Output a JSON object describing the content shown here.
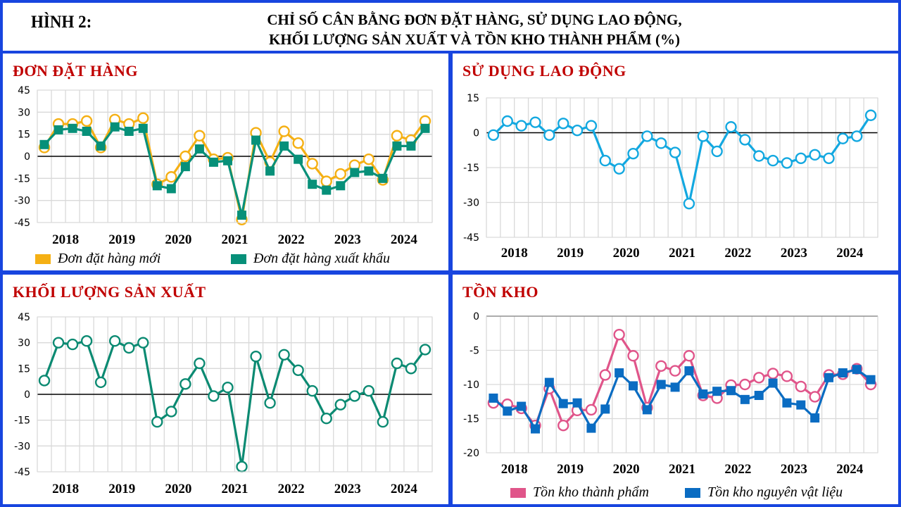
{
  "header": {
    "figure_label": "HÌNH 2:",
    "title_line1": "CHỈ SỐ CÂN BẰNG ĐƠN ĐẶT HÀNG, SỬ DỤNG LAO ĐỘNG,",
    "title_line2": "KHỐI LƯỢNG SẢN XUẤT VÀ TỒN KHO THÀNH PHẨM (%)"
  },
  "colors": {
    "frame": "#1845df",
    "panel_title": "#c00000",
    "new_orders": "#f5b014",
    "export_orders": "#079079",
    "employment": "#13a8e0",
    "output": "#0b8a72",
    "finished_goods": "#e0558a",
    "raw_materials": "#0a6cc2"
  },
  "chart_data": [
    {
      "id": "orders",
      "type": "line",
      "title": "ĐƠN ĐẶT HÀNG",
      "xlabel": "",
      "ylabel": "",
      "x_tick_labels": [
        "2018",
        "2019",
        "2020",
        "2021",
        "2022",
        "2023",
        "2024"
      ],
      "periods_per_year": 4,
      "ylim": [
        -45,
        45
      ],
      "yticks": [
        45,
        30,
        15,
        0,
        -15,
        -30,
        -45
      ],
      "grid": true,
      "legend": "bottom",
      "series": [
        {
          "name": "Đơn đặt hàng mới",
          "marker": "open-circle",
          "color_key": "new_orders",
          "values": [
            6,
            22,
            22,
            24,
            6,
            25,
            22,
            26,
            -19,
            -14,
            0,
            14,
            -2,
            -1,
            -43,
            16,
            -4,
            17,
            9,
            -5,
            -17,
            -12,
            -6,
            -2,
            -16,
            14,
            11,
            24
          ]
        },
        {
          "name": "Đơn đặt hàng xuất khẩu",
          "marker": "filled-square",
          "color_key": "export_orders",
          "values": [
            8,
            18,
            19,
            17,
            7,
            20,
            17,
            19,
            -20,
            -22,
            -7,
            5,
            -4,
            -3,
            -40,
            11,
            -10,
            7,
            -2,
            -19,
            -23,
            -20,
            -11,
            -10,
            -15,
            7,
            7,
            19
          ]
        }
      ]
    },
    {
      "id": "employment",
      "type": "line",
      "title": "SỬ DỤNG LAO ĐỘNG",
      "xlabel": "",
      "ylabel": "",
      "x_tick_labels": [
        "2018",
        "2019",
        "2020",
        "2021",
        "2022",
        "2023",
        "2024"
      ],
      "periods_per_year": 4,
      "ylim": [
        -45,
        15
      ],
      "yticks": [
        15,
        0,
        -15,
        -30,
        -45
      ],
      "grid": true,
      "legend": "none",
      "series": [
        {
          "name": "Sử dụng lao động",
          "marker": "open-circle",
          "color_key": "employment",
          "values": [
            -1,
            5,
            3,
            4.5,
            -1,
            4,
            1,
            3,
            -12,
            -15.5,
            -9,
            -1.5,
            -4.5,
            -8.5,
            -30.5,
            -1.5,
            -8,
            2.5,
            -3,
            -10,
            -12,
            -13,
            -11,
            -9.5,
            -11,
            -2.5,
            -1.5,
            7.5
          ]
        }
      ]
    },
    {
      "id": "output",
      "type": "line",
      "title": "KHỐI LƯỢNG SẢN XUẤT",
      "xlabel": "",
      "ylabel": "",
      "x_tick_labels": [
        "2018",
        "2019",
        "2020",
        "2021",
        "2022",
        "2023",
        "2024"
      ],
      "periods_per_year": 4,
      "ylim": [
        -45,
        45
      ],
      "yticks": [
        45,
        30,
        15,
        0,
        -15,
        -30,
        -45
      ],
      "grid": true,
      "legend": "none",
      "series": [
        {
          "name": "Khối lượng sản xuất",
          "marker": "open-circle",
          "color_key": "output",
          "values": [
            8,
            30,
            29,
            31,
            7,
            31,
            27,
            30,
            -16,
            -10,
            6,
            18,
            -1,
            4,
            -42,
            22,
            -5,
            23,
            14,
            2,
            -14,
            -6,
            -1,
            2,
            -16,
            18,
            15,
            26
          ]
        }
      ]
    },
    {
      "id": "inventory",
      "type": "line",
      "title": "TỒN KHO",
      "xlabel": "",
      "ylabel": "",
      "x_tick_labels": [
        "2018",
        "2019",
        "2020",
        "2021",
        "2022",
        "2023",
        "2024"
      ],
      "periods_per_year": 4,
      "ylim": [
        -20,
        0
      ],
      "yticks": [
        0,
        -5,
        -10,
        -15,
        -20
      ],
      "grid": true,
      "legend": "bottom",
      "series": [
        {
          "name": "Tồn kho thành phẩm",
          "marker": "open-circle",
          "color_key": "finished_goods",
          "values": [
            -12.7,
            -12.9,
            -13.5,
            -16.0,
            -10.6,
            -16.0,
            -13.8,
            -13.7,
            -8.6,
            -2.7,
            -5.8,
            -13.4,
            -7.3,
            -8.0,
            -5.8,
            -11.6,
            -12.0,
            -10.1,
            -10.0,
            -9.0,
            -8.4,
            -8.8,
            -10.3,
            -11.8,
            -8.6,
            -8.5,
            -7.7,
            -10.0
          ]
        },
        {
          "name": "Tồn kho nguyên vật liệu",
          "marker": "filled-square",
          "color_key": "raw_materials",
          "values": [
            -12.0,
            -13.9,
            -13.2,
            -16.5,
            -9.7,
            -12.8,
            -12.7,
            -16.4,
            -13.6,
            -8.3,
            -10.2,
            -13.7,
            -10.0,
            -10.4,
            -8.0,
            -11.4,
            -11.0,
            -10.9,
            -12.2,
            -11.6,
            -9.8,
            -12.7,
            -13.0,
            -14.9,
            -9.0,
            -8.3,
            -7.8,
            -9.3
          ]
        }
      ]
    }
  ]
}
